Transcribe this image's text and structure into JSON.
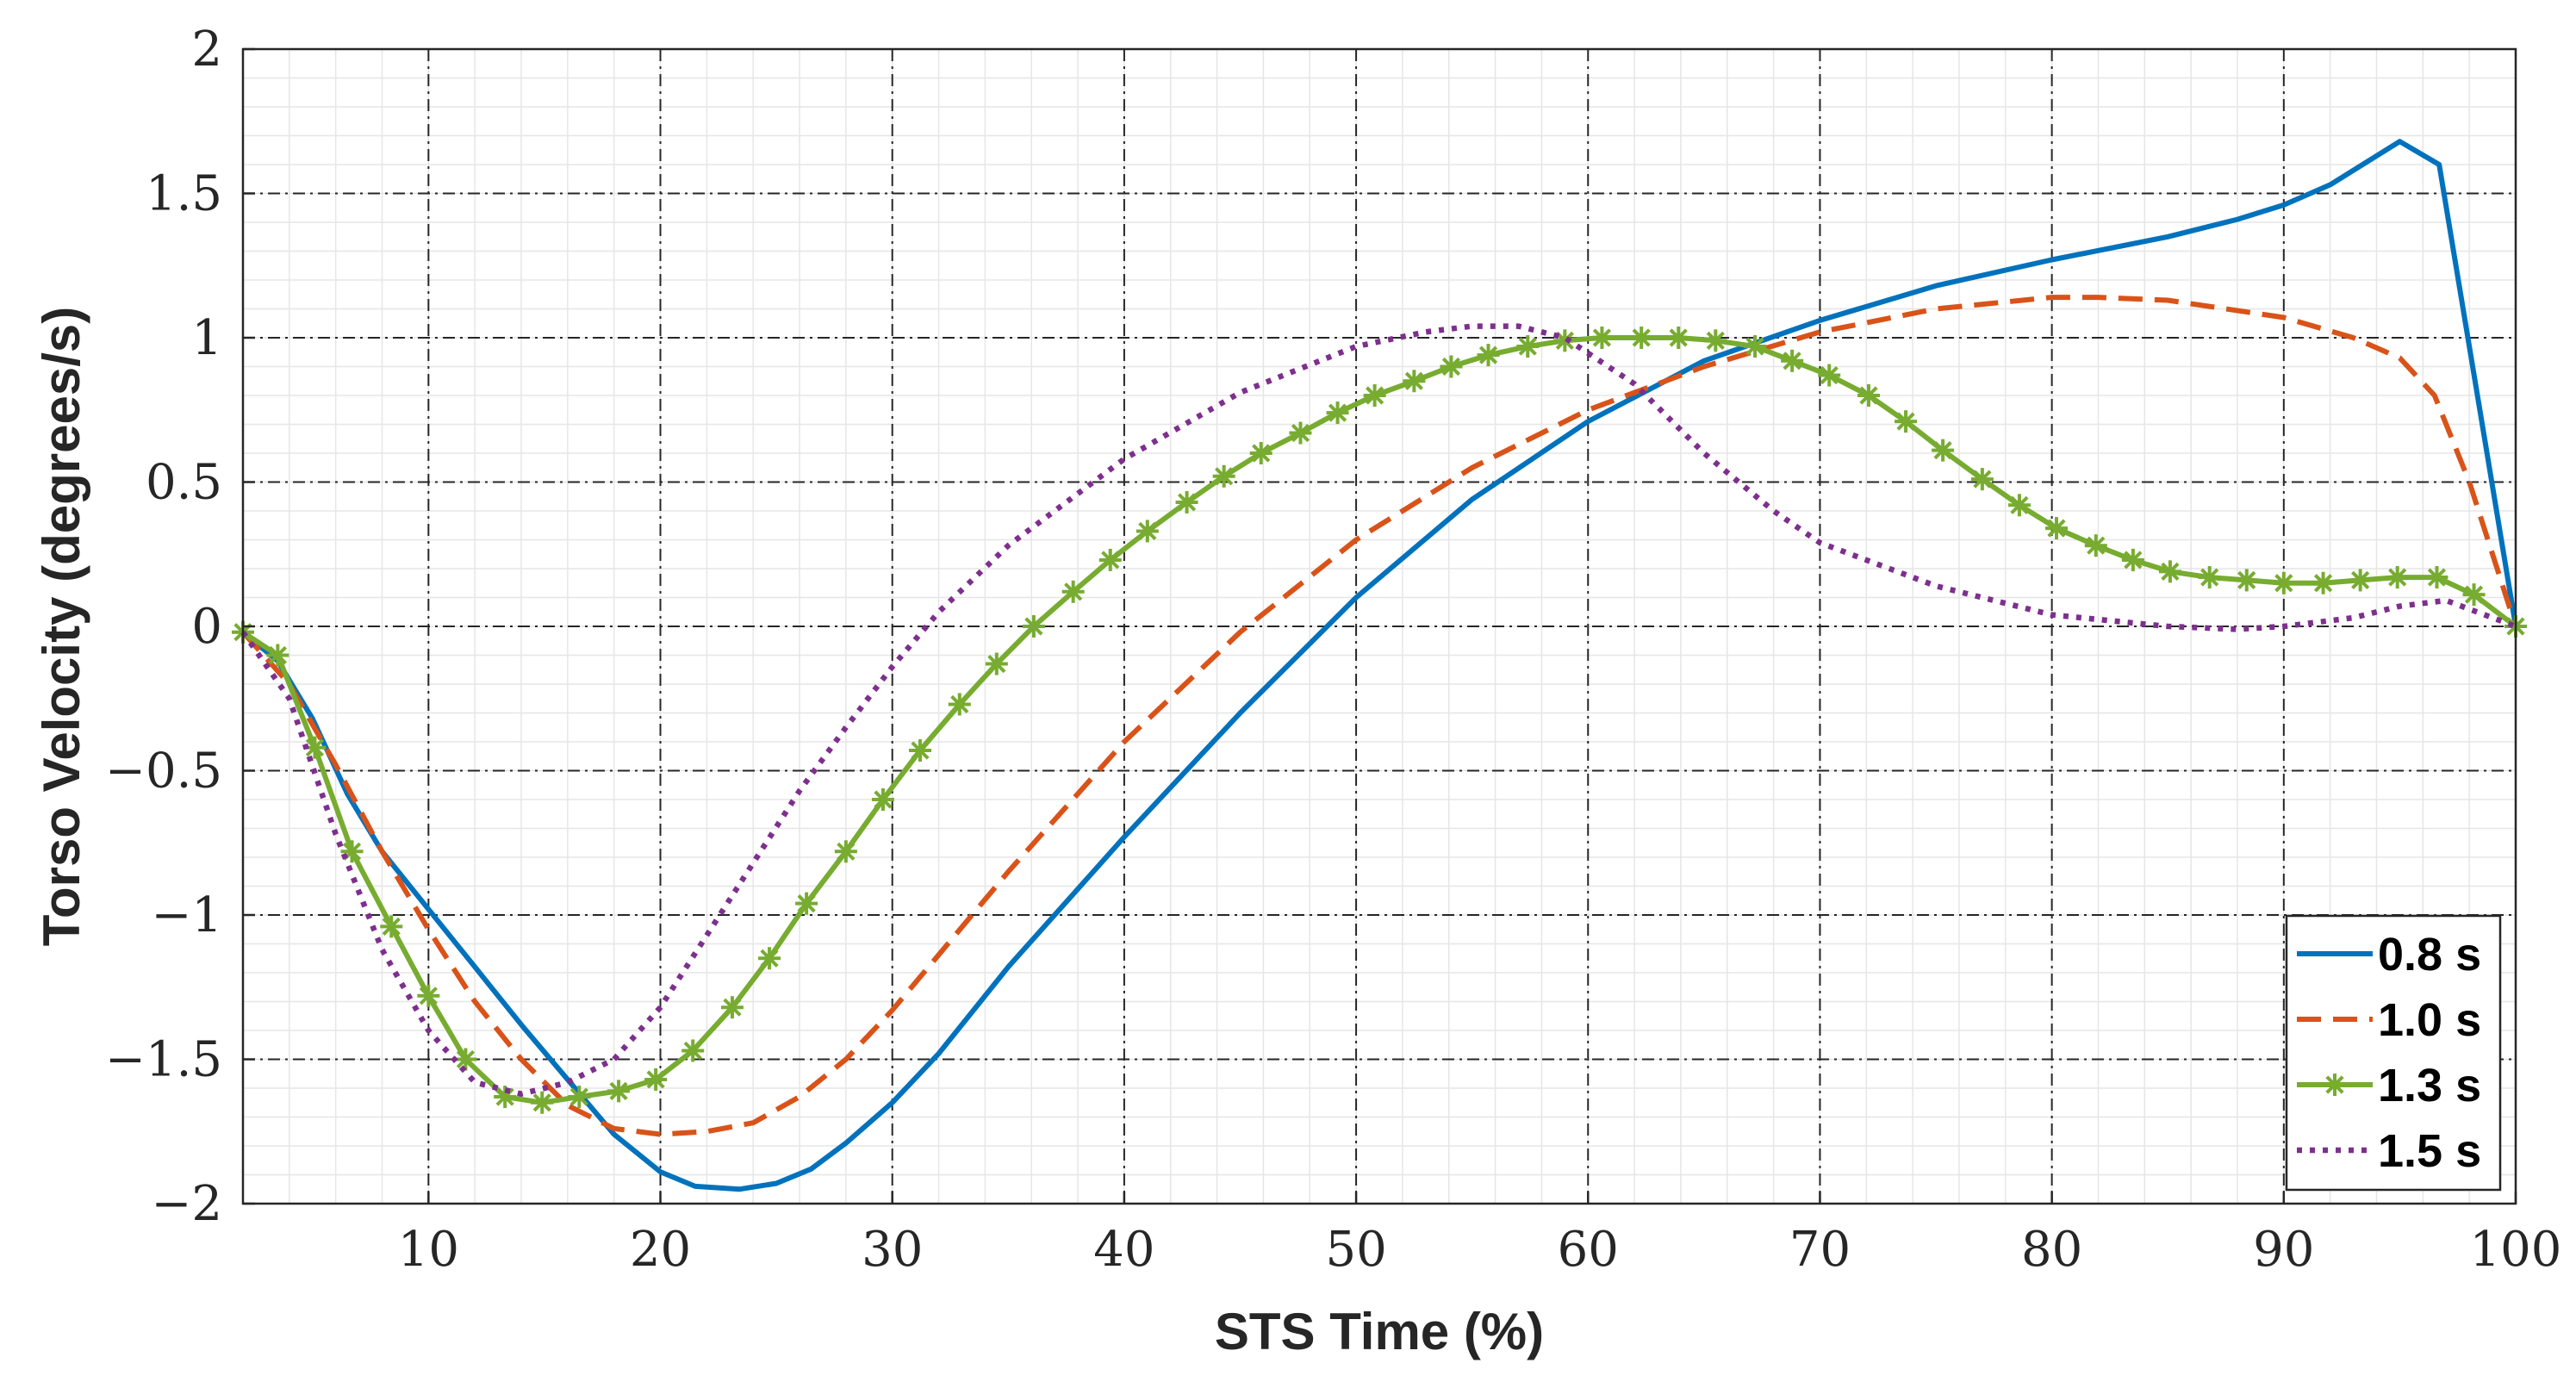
{
  "chart_data": {
    "type": "line",
    "title": "",
    "xlabel": "STS Time (%)",
    "ylabel": "Torso Velocity (degrees/s)",
    "xlim": [
      2,
      100
    ],
    "ylim": [
      -2,
      2
    ],
    "xticks": [
      10,
      20,
      30,
      40,
      50,
      60,
      70,
      80,
      90,
      100
    ],
    "yticks": [
      -2,
      -1.5,
      -1,
      -0.5,
      0,
      0.5,
      1,
      1.5,
      2
    ],
    "xtick_labels": [
      "10",
      "20",
      "30",
      "40",
      "50",
      "60",
      "70",
      "80",
      "90",
      "100"
    ],
    "ytick_labels": [
      "−2",
      "−1.5",
      "−1",
      "−0.5",
      "0",
      "0.5",
      "1",
      "1.5",
      "2"
    ],
    "grid": true,
    "minor_grid": true,
    "legend_position": "bottom-right",
    "series": [
      {
        "name": "0.8 s",
        "color": "#0072BD",
        "style": "solid",
        "x": [
          2,
          3.5,
          5,
          6.5,
          8,
          10,
          12,
          14,
          16,
          18,
          20,
          21.5,
          23.4,
          25,
          26.5,
          28,
          30,
          32,
          35,
          40,
          45,
          50,
          55,
          60,
          65,
          70,
          75,
          80,
          85,
          88,
          90,
          92,
          95,
          96.7,
          100
        ],
        "y": [
          -0.02,
          -0.12,
          -0.32,
          -0.58,
          -0.78,
          -0.98,
          -1.18,
          -1.38,
          -1.57,
          -1.76,
          -1.89,
          -1.94,
          -1.95,
          -1.93,
          -1.88,
          -1.79,
          -1.65,
          -1.48,
          -1.18,
          -0.73,
          -0.3,
          0.1,
          0.44,
          0.71,
          0.92,
          1.06,
          1.18,
          1.27,
          1.35,
          1.41,
          1.46,
          1.53,
          1.68,
          1.6,
          0.0
        ]
      },
      {
        "name": "1.0 s",
        "color": "#D95319",
        "style": "dashed",
        "x": [
          2,
          4,
          6,
          8,
          10,
          12,
          14,
          16,
          18,
          20,
          22,
          24,
          26,
          28,
          30,
          35,
          40,
          45,
          50,
          55,
          60,
          65,
          70,
          75,
          80,
          82,
          85,
          90,
          93,
          95,
          96.5,
          98,
          100
        ],
        "y": [
          -0.02,
          -0.2,
          -0.48,
          -0.78,
          -1.05,
          -1.3,
          -1.5,
          -1.66,
          -1.74,
          -1.76,
          -1.75,
          -1.72,
          -1.63,
          -1.5,
          -1.33,
          -0.85,
          -0.4,
          -0.02,
          0.3,
          0.55,
          0.75,
          0.9,
          1.02,
          1.1,
          1.14,
          1.14,
          1.13,
          1.07,
          1.0,
          0.93,
          0.8,
          0.5,
          0.0
        ]
      },
      {
        "name": "1.3 s",
        "color": "#77AC30",
        "style": "solid-asterisk",
        "x": [
          2,
          3.5,
          5.1,
          6.7,
          8.4,
          10,
          11.6,
          13.3,
          14.9,
          16.5,
          18.2,
          19.8,
          21.4,
          23.1,
          24.7,
          26.3,
          28,
          29.6,
          31.2,
          32.9,
          34.5,
          36.1,
          37.8,
          39.4,
          41,
          42.7,
          44.3,
          45.9,
          47.6,
          49.2,
          50.8,
          52.5,
          54.1,
          55.7,
          57.4,
          59,
          60.6,
          62.3,
          63.9,
          65.5,
          67.2,
          68.8,
          70.4,
          72.1,
          73.7,
          75.3,
          77,
          78.6,
          80.2,
          81.9,
          83.5,
          85.1,
          86.8,
          88.4,
          90,
          91.7,
          93.3,
          94.9,
          96.6,
          98.2,
          100
        ],
        "y": [
          -0.02,
          -0.1,
          -0.42,
          -0.78,
          -1.04,
          -1.28,
          -1.5,
          -1.63,
          -1.65,
          -1.63,
          -1.61,
          -1.57,
          -1.47,
          -1.32,
          -1.15,
          -0.96,
          -0.78,
          -0.6,
          -0.43,
          -0.27,
          -0.13,
          0.0,
          0.12,
          0.23,
          0.33,
          0.43,
          0.52,
          0.6,
          0.67,
          0.74,
          0.8,
          0.85,
          0.9,
          0.94,
          0.97,
          0.99,
          1.0,
          1.0,
          1.0,
          0.99,
          0.97,
          0.92,
          0.87,
          0.8,
          0.71,
          0.61,
          0.51,
          0.42,
          0.34,
          0.28,
          0.23,
          0.19,
          0.17,
          0.16,
          0.15,
          0.15,
          0.16,
          0.17,
          0.17,
          0.11,
          0.0
        ]
      },
      {
        "name": "1.5 s",
        "color": "#7E2F8E",
        "style": "dotted",
        "x": [
          2,
          4,
          6,
          8,
          10,
          12,
          14,
          16,
          18,
          20,
          22,
          24,
          26,
          28,
          30,
          32,
          35,
          40,
          45,
          50,
          53,
          55,
          57,
          59,
          62,
          65,
          68,
          70,
          75,
          80,
          85,
          88,
          90,
          93,
          95,
          97,
          100
        ],
        "y": [
          -0.02,
          -0.25,
          -0.72,
          -1.12,
          -1.4,
          -1.58,
          -1.62,
          -1.58,
          -1.5,
          -1.32,
          -1.07,
          -0.82,
          -0.57,
          -0.35,
          -0.14,
          0.05,
          0.28,
          0.58,
          0.81,
          0.97,
          1.02,
          1.04,
          1.04,
          1.0,
          0.84,
          0.6,
          0.4,
          0.29,
          0.14,
          0.04,
          0.0,
          -0.01,
          0.0,
          0.03,
          0.07,
          0.09,
          0.0
        ]
      }
    ]
  }
}
